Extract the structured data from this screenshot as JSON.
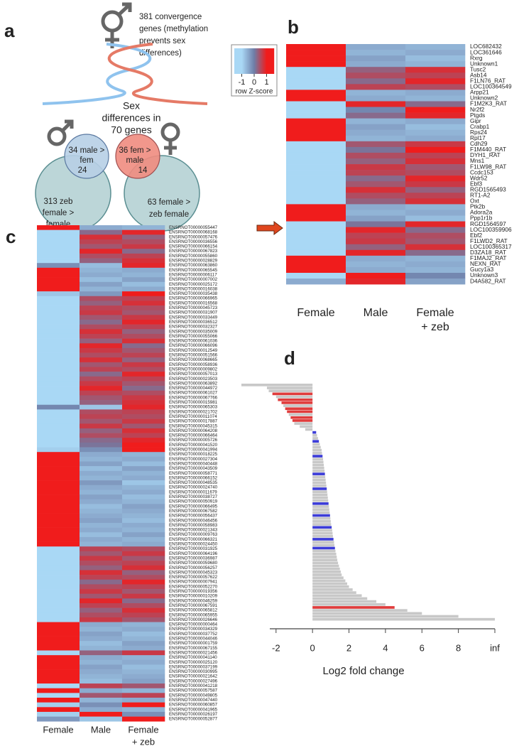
{
  "panel_a": {
    "label": "a",
    "convergence": [
      "381 convergence",
      "genes (methylation",
      "prevents sex",
      "differences)"
    ],
    "sex_differences": [
      "Sex",
      "differences in",
      "70 genes"
    ],
    "male_fem": [
      "34 male >",
      "fem"
    ],
    "fem_male": [
      "36 fem >",
      "male"
    ],
    "overlap_left": "24",
    "overlap_right": "14",
    "zeb_female_left": [
      "313 zeb",
      "female >",
      "female"
    ],
    "zeb_female_right": [
      "63  female >",
      "zeb female"
    ]
  },
  "chart_data": [
    {
      "type": "heatmap",
      "label": "b",
      "colorscale": [
        "#a9d8f5",
        "#6e7ea8",
        "#f01c1c"
      ],
      "key": {
        "title": "row Z-score",
        "lim": [
          -1.6,
          1.6
        ],
        "ticks": [
          -1,
          0,
          1
        ]
      },
      "columns": [
        [
          "Female"
        ],
        [
          "Male"
        ],
        [
          "Female",
          "+ zeb"
        ]
      ],
      "rows": [
        "LOC682432",
        "LOC361646",
        "Rxrg",
        "Unknown1",
        "Tusc2",
        "Asb14",
        "F1LN76_RAT",
        "LOC100364549",
        "Arpp21",
        "Unknown2",
        "F1M2K3_RAT",
        "Nr2f2",
        "Ptgds",
        "Gipr",
        "Crabp1",
        "Rps24",
        "Rpl17",
        "Cdh29",
        "F1M440_RAT",
        "DYH1_RAT",
        "Mns1",
        "F1LW98_RAT",
        "Ccdc153",
        "Wdr52",
        "Ebf3",
        "RGD1565493",
        "RT1-A2",
        "Oxt",
        "Ptk2b",
        "Adora2a",
        "Ppp1r1b",
        "RGD1564597",
        "LOC100359906",
        "Ebf2",
        "F1LWD2_RAT",
        "LOC100365317",
        "D3ZA18_RAT",
        "F1MAJ2_RAT",
        "NEXN_RAT",
        "Gucy1a3",
        "Unknown3",
        "D4A582_RAT"
      ],
      "values": [
        [
          1.1,
          -0.5,
          -0.6
        ],
        [
          1.1,
          -0.6,
          -0.5
        ],
        [
          1.1,
          -0.4,
          -0.7
        ],
        [
          1.1,
          -0.5,
          -0.6
        ],
        [
          -1.1,
          0.3,
          0.8
        ],
        [
          -1.1,
          0.5,
          0.6
        ],
        [
          -1.1,
          0.2,
          0.9
        ],
        [
          -1.1,
          0.6,
          0.5
        ],
        [
          1.1,
          -0.6,
          -0.5
        ],
        [
          1.1,
          -0.5,
          -0.6
        ],
        [
          -1.1,
          0.9,
          0.2
        ],
        [
          -1.0,
          -0.1,
          1.1
        ],
        [
          -1.1,
          0.2,
          0.9
        ],
        [
          1.1,
          -0.6,
          -0.5
        ],
        [
          1.1,
          -0.4,
          -0.7
        ],
        [
          1.1,
          -0.5,
          -0.6
        ],
        [
          1.1,
          -0.6,
          -0.5
        ],
        [
          -1.1,
          0.4,
          0.7
        ],
        [
          -1.1,
          0.1,
          1.0
        ],
        [
          -1.1,
          0.5,
          0.6
        ],
        [
          -1.1,
          0.3,
          0.8
        ],
        [
          -1.1,
          0.7,
          0.4
        ],
        [
          -1.1,
          0.6,
          0.5
        ],
        [
          -1.1,
          0.2,
          0.9
        ],
        [
          -1.1,
          0.4,
          0.7
        ],
        [
          -1.1,
          0.8,
          0.3
        ],
        [
          -1.1,
          0.5,
          0.6
        ],
        [
          -1.1,
          0.3,
          0.8
        ],
        [
          1.1,
          -0.5,
          -0.6
        ],
        [
          1.1,
          -0.6,
          -0.5
        ],
        [
          1.1,
          -0.4,
          -0.7
        ],
        [
          -1.0,
          0.1,
          0.9
        ],
        [
          -1.1,
          0.9,
          0.2
        ],
        [
          -1.1,
          0.6,
          0.5
        ],
        [
          -1.1,
          0.7,
          0.4
        ],
        [
          -1.1,
          0.3,
          0.8
        ],
        [
          -1.1,
          0.9,
          0.2
        ],
        [
          1.1,
          -0.5,
          -0.6
        ],
        [
          1.1,
          -0.6,
          -0.5
        ],
        [
          1.1,
          -0.5,
          -0.6
        ],
        [
          -1.0,
          1.1,
          -0.1
        ],
        [
          -0.5,
          0.9,
          -0.4
        ]
      ]
    },
    {
      "type": "heatmap",
      "label": "c",
      "colorscale": [
        "#a9d8f5",
        "#6e7ea8",
        "#f01c1c"
      ],
      "columns": [
        [
          "Female"
        ],
        [
          "Male"
        ],
        [
          "Female",
          "+ zeb"
        ]
      ],
      "rows": [
        "ENSRNOT00000055447",
        "ENSRNOT00000068168",
        "ENSRNOT00000057476",
        "ENSRNOT00000036556",
        "ENSRNOT00000066154",
        "ENSRNOT00000067823",
        "ENSRNOT00000055860",
        "ENSRNOT00000028829",
        "ENSRNOT00000063860",
        "ENSRNOT00000065545",
        "ENSRNOT00000006117",
        "ENSRNOT00000007002",
        "ENSRNOT00000025172",
        "ENSRNOT00000016038",
        "ENSRNOT00000035438",
        "ENSRNOT00000066965",
        "ENSRNOT00000016568",
        "ENSRNOT00000045723",
        "ENSRNOT00000031907",
        "ENSRNOT00000033449",
        "ENSRNOT00000036512",
        "ENSRNOT00000032327",
        "ENSRNOT00000035009",
        "ENSRNOT00000055066",
        "ENSRNOT00000061036",
        "ENSRNOT00000066096",
        "ENSRNOT00000012549",
        "ENSRNOT00000051566",
        "ENSRNOT00000068665",
        "ENSRNOT00000058936",
        "ENSRNOT00000009802",
        "ENSRNOT00000057013",
        "ENSRNOT00000023503",
        "ENSRNOT00000063892",
        "ENSRNOT00000044972",
        "ENSRNOT00000061027",
        "ENSRNOT00000067766",
        "ENSRNOT00000015981",
        "ENSRNOT00000065303",
        "ENSRNOT00000021702",
        "ENSRNOT00000011074",
        "ENSRNOT00000017887",
        "ENSRNOT00000045315",
        "ENSRNOT00000064208",
        "ENSRNOT00000066464",
        "ENSRNOT00000005726",
        "ENSRNOT00000041520",
        "ENSRNOT00000041994",
        "ENSRNOT00000018225",
        "ENSRNOT00000027304",
        "ENSRNOT00000040448",
        "ENSRNOT00000043509",
        "ENSRNOT00000058771",
        "ENSRNOT00000066152",
        "ENSRNOT00000048535",
        "ENSRNOT00000024740",
        "ENSRNOT00000011679",
        "ENSRNOT00000038727",
        "ENSRNOT00000050919",
        "ENSRNOT00000066495",
        "ENSRNOT00000067582",
        "ENSRNOT00000056437",
        "ENSRNOT00000046456",
        "ENSRNOT00000058983",
        "ENSRNOT00000021343",
        "ENSRNOT00000009763",
        "ENSRNOT00000066321",
        "ENSRNOT00000024450",
        "ENSRNOT00000031925",
        "ENSRNOT00000064196",
        "ENSRNOT00000036987",
        "ENSRNOT00000059680",
        "ENSRNOT00000056257",
        "ENSRNOT00000045323",
        "ENSRNOT00000057622",
        "ENSRNOT00000007941",
        "ENSRNOT00000052270",
        "ENSRNOT00000019356",
        "ENSRNOT00000010209",
        "ENSRNOT00000046259",
        "ENSRNOT00000067591",
        "ENSRNOT00000065812",
        "ENSRNOT00000065955",
        "ENSRNOT00000026646",
        "ENSRNOT00000000464",
        "ENSRNOT00000034329",
        "ENSRNOT00000037752",
        "ENSRNOT00000044046",
        "ENSRNOT00000001759",
        "ENSRNOT00000067155",
        "ENSRNOT00000021456",
        "ENSRNOT00000041140",
        "ENSRNOT00000025120",
        "ENSRNOT00000037199",
        "ENSRNOT00000030995",
        "ENSRNOT00000021642",
        "ENSRNOT00000027496",
        "ENSRNOT00000041218",
        "ENSRNOT00000057587",
        "ENSRNOT00000049805",
        "ENSRNOT00000047440",
        "ENSRNOT00000060857",
        "ENSRNOT00000041965",
        "ENSRNOT00000026197",
        "ENSRNOT00000052877"
      ],
      "values": [
        [
          1.1,
          -0.5,
          -0.6
        ],
        [
          -1.1,
          0.2,
          0.9
        ],
        [
          -1.1,
          0.8,
          0.3
        ],
        [
          -1.1,
          0.6,
          0.5
        ],
        [
          -1.1,
          0.4,
          0.7
        ],
        [
          -1.1,
          0.9,
          0.2
        ],
        [
          -1.1,
          0.5,
          0.6
        ],
        [
          -1.1,
          0.3,
          0.8
        ],
        [
          -0.2,
          -0.7,
          0.9
        ],
        [
          1.1,
          -0.6,
          -0.5
        ],
        [
          1.1,
          -0.5,
          -0.6
        ],
        [
          1.1,
          -0.7,
          -0.4
        ],
        [
          1.1,
          -0.4,
          -0.7
        ],
        [
          1.1,
          -0.6,
          -0.5
        ],
        [
          -0.8,
          -0.3,
          1.1
        ],
        [
          -1.1,
          0.5,
          0.6
        ],
        [
          -1.1,
          0.3,
          0.8
        ],
        [
          -1.1,
          0.6,
          0.5
        ],
        [
          -1.1,
          0.7,
          0.4
        ],
        [
          -1.1,
          0.4,
          0.7
        ],
        [
          -1.1,
          0.2,
          0.9
        ],
        [
          -1.1,
          0.5,
          0.6
        ],
        [
          -1.1,
          0.8,
          0.3
        ],
        [
          -1.1,
          0.6,
          0.5
        ],
        [
          -1.1,
          0.3,
          0.8
        ],
        [
          -1.1,
          0.9,
          0.2
        ],
        [
          -1.1,
          0.7,
          0.4
        ],
        [
          -1.1,
          0.5,
          0.6
        ],
        [
          -1.1,
          0.8,
          0.3
        ],
        [
          -1.1,
          0.4,
          0.7
        ],
        [
          -1.1,
          0.6,
          0.5
        ],
        [
          -1.1,
          0.2,
          0.9
        ],
        [
          -1.1,
          0.5,
          0.6
        ],
        [
          -1.1,
          0.7,
          0.4
        ],
        [
          -1.1,
          0.9,
          0.2
        ],
        [
          -1.1,
          0.6,
          0.5
        ],
        [
          -1.1,
          0.4,
          0.7
        ],
        [
          -1.1,
          0.3,
          0.8
        ],
        [
          -0.1,
          -0.8,
          0.9
        ],
        [
          -1.1,
          0.5,
          0.6
        ],
        [
          -1.1,
          0.6,
          0.5
        ],
        [
          -1.1,
          0.4,
          0.7
        ],
        [
          -1.1,
          0.7,
          0.4
        ],
        [
          -1.1,
          0.3,
          0.8
        ],
        [
          -1.1,
          0.5,
          0.6
        ],
        [
          -1.1,
          0.2,
          0.9
        ],
        [
          -1.1,
          0.1,
          1.0
        ],
        [
          -0.9,
          -0.2,
          1.1
        ],
        [
          1.1,
          -0.5,
          -0.6
        ],
        [
          1.1,
          -0.6,
          -0.5
        ],
        [
          1.1,
          -0.4,
          -0.7
        ],
        [
          1.1,
          -0.7,
          -0.4
        ],
        [
          1.1,
          -0.5,
          -0.6
        ],
        [
          1.1,
          -0.6,
          -0.5
        ],
        [
          1.1,
          -0.3,
          -0.8
        ],
        [
          1.1,
          -0.5,
          -0.6
        ],
        [
          1.1,
          -0.6,
          -0.5
        ],
        [
          1.1,
          -0.4,
          -0.7
        ],
        [
          1.1,
          -0.5,
          -0.6
        ],
        [
          1.1,
          -0.7,
          -0.4
        ],
        [
          1.1,
          -0.6,
          -0.5
        ],
        [
          1.1,
          -0.5,
          -0.6
        ],
        [
          1.1,
          -0.4,
          -0.7
        ],
        [
          1.1,
          -0.6,
          -0.5
        ],
        [
          1.1,
          -0.5,
          -0.6
        ],
        [
          1.1,
          -0.7,
          -0.4
        ],
        [
          1.1,
          -0.5,
          -0.6
        ],
        [
          1.1,
          -0.6,
          -0.5
        ],
        [
          -1.1,
          0.6,
          0.5
        ],
        [
          -1.1,
          0.4,
          0.7
        ],
        [
          -1.1,
          0.7,
          0.4
        ],
        [
          -1.1,
          0.5,
          0.6
        ],
        [
          -1.1,
          0.3,
          0.8
        ],
        [
          -1.1,
          0.8,
          0.3
        ],
        [
          -1.1,
          0.6,
          0.5
        ],
        [
          -1.1,
          0.2,
          0.9
        ],
        [
          -1.1,
          0.5,
          0.6
        ],
        [
          -1.1,
          0.7,
          0.4
        ],
        [
          -1.1,
          0.4,
          0.7
        ],
        [
          -1.1,
          0.9,
          0.2
        ],
        [
          -1.1,
          0.6,
          0.5
        ],
        [
          -1.1,
          0.3,
          0.8
        ],
        [
          -1.1,
          0.5,
          0.6
        ],
        [
          -1.1,
          0.7,
          0.4
        ],
        [
          1.1,
          -0.5,
          -0.6
        ],
        [
          1.1,
          -0.6,
          -0.5
        ],
        [
          1.1,
          -0.4,
          -0.7
        ],
        [
          1.1,
          -0.5,
          -0.6
        ],
        [
          1.1,
          -0.7,
          -0.4
        ],
        [
          1.1,
          -0.6,
          -0.5
        ],
        [
          -1.0,
          0.3,
          0.7
        ],
        [
          1.1,
          -0.5,
          -0.6
        ],
        [
          1.1,
          -0.6,
          -0.5
        ],
        [
          1.1,
          -0.4,
          -0.7
        ],
        [
          1.1,
          -0.5,
          -0.6
        ],
        [
          1.1,
          -0.6,
          -0.5
        ],
        [
          1.1,
          -0.7,
          -0.4
        ],
        [
          -1.0,
          0.6,
          0.4
        ],
        [
          1.1,
          -0.5,
          -0.6
        ],
        [
          -1.0,
          0.4,
          0.6
        ],
        [
          1.1,
          -0.6,
          -0.5
        ],
        [
          -0.9,
          -0.2,
          1.1
        ],
        [
          1.1,
          -0.5,
          -0.6
        ],
        [
          -0.9,
          1.1,
          -0.2
        ],
        [
          -0.3,
          -0.8,
          1.1
        ]
      ]
    },
    {
      "type": "bar",
      "label": "d",
      "xlabel": "Log2 fold change",
      "xlim": [
        -3.9,
        10
      ],
      "xticks": [
        -2,
        0,
        2,
        4,
        6,
        8,
        {
          "value": 10,
          "label": "inf"
        }
      ],
      "values": [
        -3.9,
        -2.5,
        -2.4,
        -2.2,
        -2.0,
        -1.9,
        -1.7,
        -1.6,
        -1.5,
        -1.4,
        -1.3,
        -1.2,
        -1.1,
        -1.0,
        -0.7,
        -0.4,
        0.2,
        0.25,
        0.3,
        0.35,
        0.4,
        0.45,
        0.5,
        0.52,
        0.55,
        0.58,
        0.6,
        0.62,
        0.64,
        0.66,
        0.68,
        0.7,
        0.72,
        0.74,
        0.76,
        0.78,
        0.8,
        0.82,
        0.84,
        0.86,
        0.88,
        0.9,
        0.92,
        0.94,
        0.96,
        0.98,
        1.0,
        1.02,
        1.05,
        1.08,
        1.1,
        1.12,
        1.15,
        1.18,
        1.2,
        1.23,
        1.26,
        1.3,
        1.33,
        1.36,
        1.4,
        1.45,
        1.5,
        1.55,
        1.6,
        1.7,
        1.8,
        1.9,
        2.0,
        2.2,
        2.4,
        2.7,
        3.0,
        3.5,
        4.0,
        4.5,
        5.2,
        6.0,
        8.0,
        10
      ],
      "colors": [
        "#c8c8c8",
        "#c8c8c8",
        "#c8c8c8",
        "#e03c3c",
        "#c8c8c8",
        "#e03c3c",
        "#e03c3c",
        "#c8c8c8",
        "#e03c3c",
        "#e03c3c",
        "#c8c8c8",
        "#e03c3c",
        "#e03c3c",
        "#c8c8c8",
        "#c8c8c8",
        "#c8c8c8",
        "#3c3cd8",
        "#c8c8c8",
        "#c8c8c8",
        "#3c3cd8",
        "#c8c8c8",
        "#c8c8c8",
        "#c8c8c8",
        "#c8c8c8",
        "#3c3cd8",
        "#c8c8c8",
        "#c8c8c8",
        "#c8c8c8",
        "#c8c8c8",
        "#c8c8c8",
        "#3c3cd8",
        "#c8c8c8",
        "#c8c8c8",
        "#c8c8c8",
        "#c8c8c8",
        "#3c3cd8",
        "#c8c8c8",
        "#c8c8c8",
        "#c8c8c8",
        "#c8c8c8",
        "#3c3cd8",
        "#c8c8c8",
        "#c8c8c8",
        "#c8c8c8",
        "#3c3cd8",
        "#c8c8c8",
        "#c8c8c8",
        "#c8c8c8",
        "#3c3cd8",
        "#c8c8c8",
        "#c8c8c8",
        "#c8c8c8",
        "#3c3cd8",
        "#c8c8c8",
        "#c8c8c8",
        "#3c3cd8",
        "#c8c8c8",
        "#c8c8c8",
        "#c8c8c8",
        "#c8c8c8",
        "#c8c8c8",
        "#c8c8c8",
        "#c8c8c8",
        "#c8c8c8",
        "#c8c8c8",
        "#c8c8c8",
        "#c8c8c8",
        "#c8c8c8",
        "#c8c8c8",
        "#c8c8c8",
        "#c8c8c8",
        "#c8c8c8",
        "#c8c8c8",
        "#c8c8c8",
        "#c8c8c8",
        "#e03c3c",
        "#c8c8c8",
        "#c8c8c8",
        "#c8c8c8",
        "#c8c8c8"
      ]
    }
  ]
}
